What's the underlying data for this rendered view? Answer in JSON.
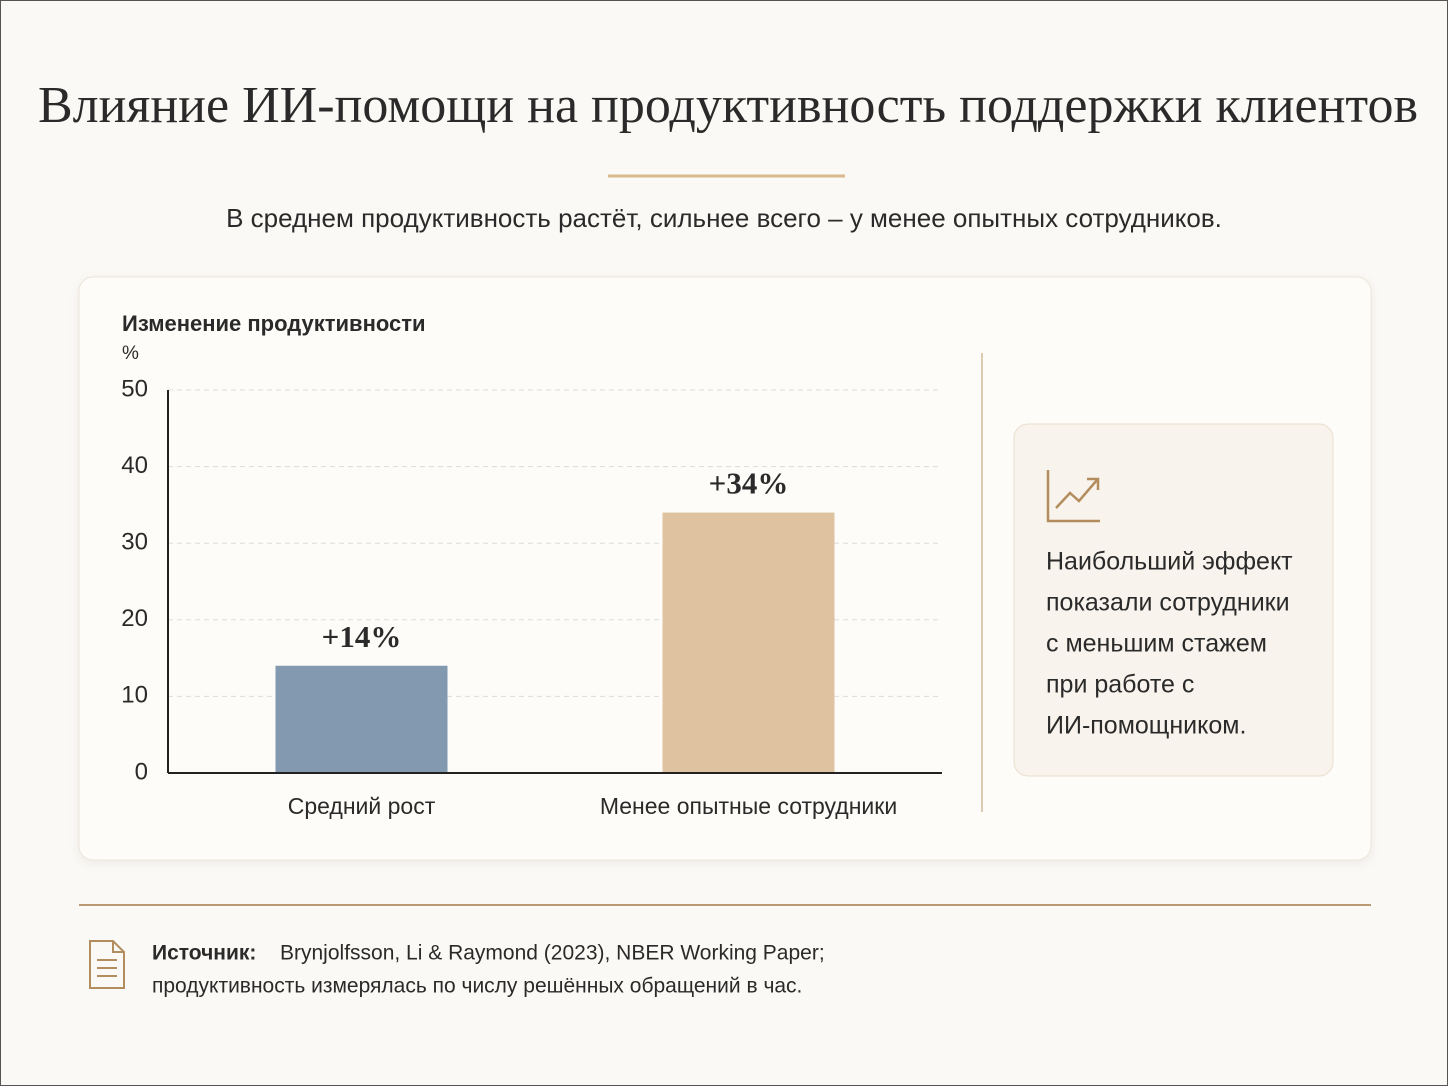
{
  "title": "Влияние ИИ-помощи на продуктивность поддержки клиентов",
  "subtitle": "В среднем продуктивность растёт, сильнее всего – у менее опытных сотрудников.",
  "chart_data": {
    "type": "bar",
    "y_title": "Изменение продуктивности",
    "y_unit": "%",
    "categories": [
      "Средний рост",
      "Менее опытные сотрудники"
    ],
    "values": [
      14,
      34
    ],
    "value_labels": [
      "+14%",
      "+34%"
    ],
    "colors": [
      "#8399b0",
      "#dfc3a0"
    ],
    "ylim": [
      0,
      50
    ],
    "yticks": [
      0,
      10,
      20,
      30,
      40,
      50
    ],
    "grid": true
  },
  "callout": {
    "lines": [
      "Наибольший эффект",
      "показали сотрудники",
      "с меньшим стажем",
      "при работе с",
      "ИИ-помощником."
    ]
  },
  "source": {
    "label": "Источник:",
    "lines": [
      "Brynjolfsson, Li & Raymond (2023), NBER Working Paper;",
      "продуктивность измерялась по числу решённых обращений в час."
    ]
  }
}
